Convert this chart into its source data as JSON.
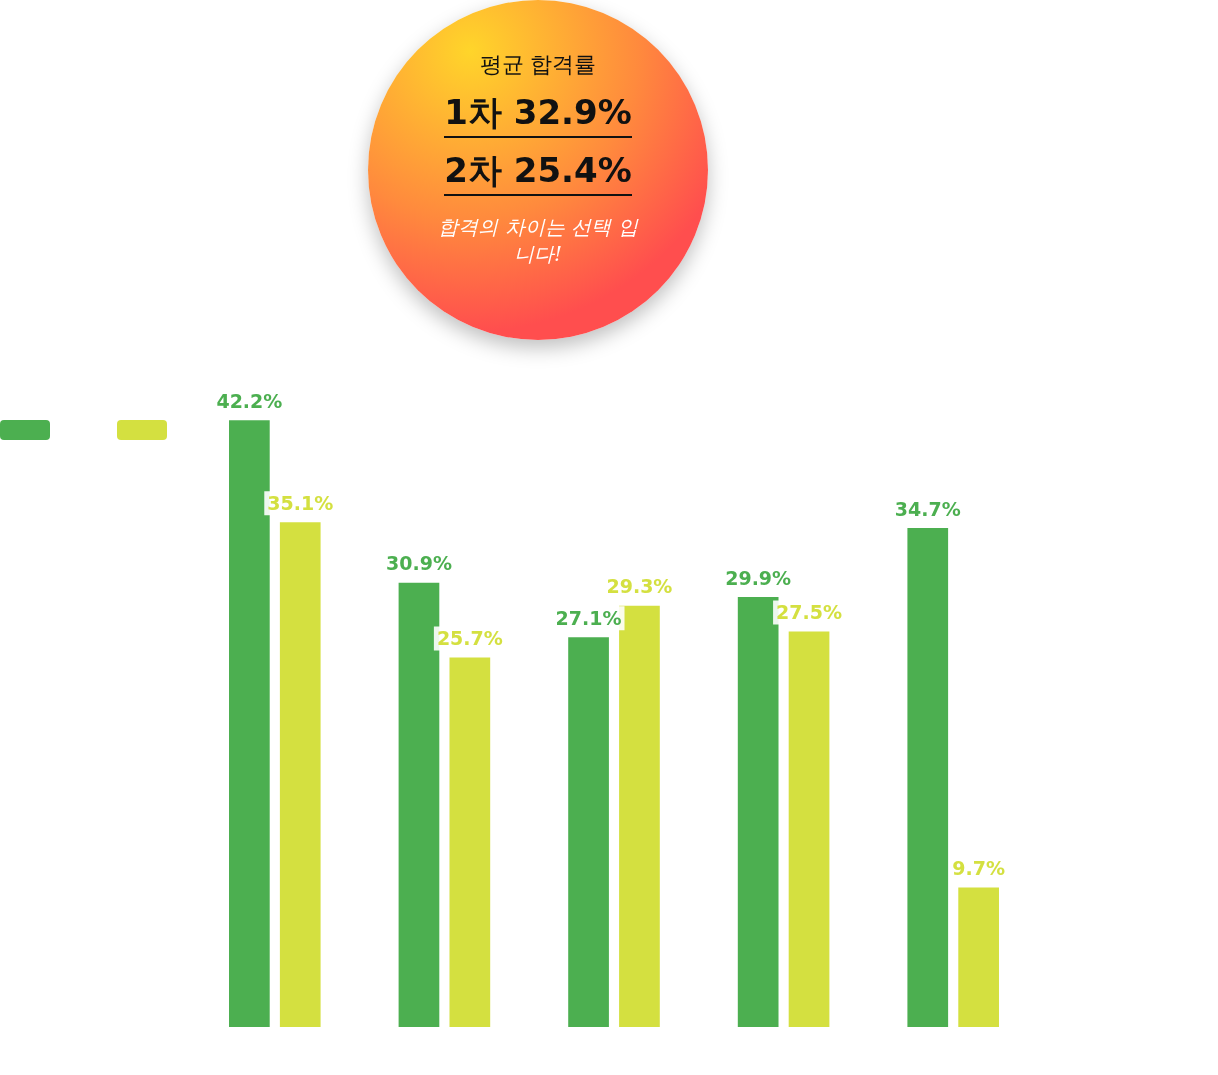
{
  "chart_data": {
    "type": "bar",
    "title": "평균 합격률",
    "annotations": [
      "1차 32.9%",
      "2차 25.4%",
      "합격의 차이는 선택 입니다!"
    ],
    "categories": [
      null,
      null,
      null,
      null,
      null
    ],
    "series": [
      {
        "color": "#4caf50",
        "values": [
          42.2,
          30.9,
          27.1,
          29.9,
          34.7
        ],
        "value_labels": [
          "42.2%",
          "30.9%",
          "27.1%",
          "29.9%",
          "34.7%"
        ]
      },
      {
        "color": "#d4e040",
        "values": [
          35.1,
          25.7,
          29.3,
          27.5,
          9.7
        ],
        "value_labels": [
          "35.1%",
          "25.7%",
          "29.3%",
          "27.5%",
          "9.7%"
        ]
      }
    ],
    "grid": false,
    "tick_labels": false
  }
}
